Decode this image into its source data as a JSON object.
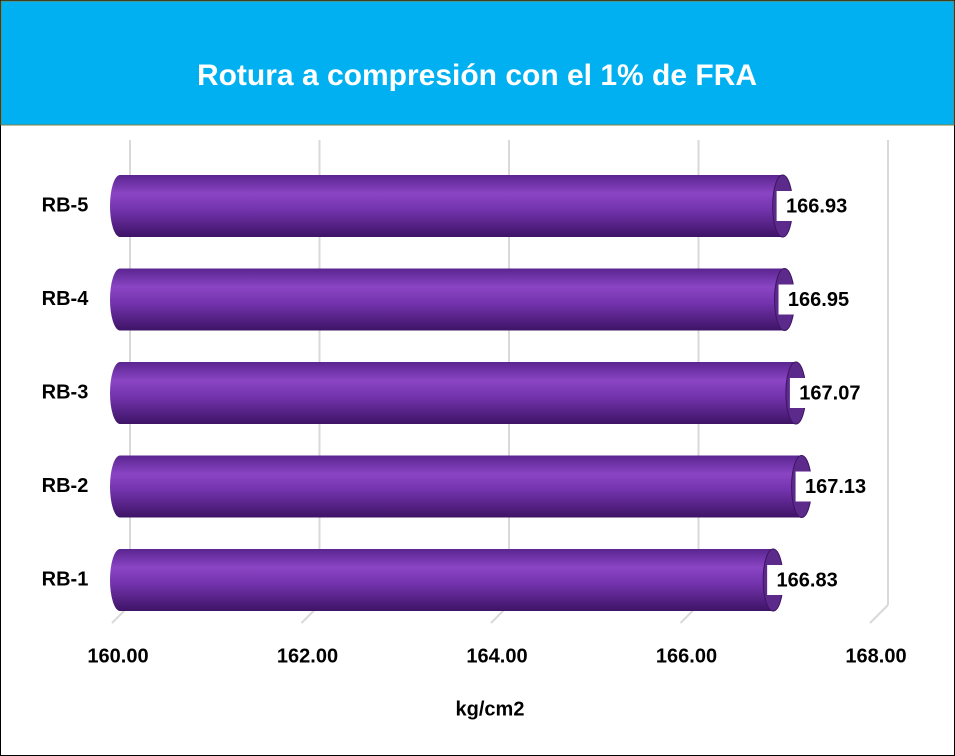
{
  "chart_data": {
    "type": "bar",
    "orientation": "horizontal",
    "title": "Rotura a compresión con el 1% de FRA",
    "x_label": "kg/cm2",
    "categories": [
      "RB-1",
      "RB-2",
      "RB-3",
      "RB-4",
      "RB-5"
    ],
    "values": [
      166.83,
      167.13,
      167.07,
      166.95,
      166.93
    ],
    "color": "#7030a0",
    "xlim": [
      160,
      168
    ],
    "xticks": [
      {
        "value": 160,
        "label": "160.00"
      },
      {
        "value": 162,
        "label": "162.00"
      },
      {
        "value": 164,
        "label": "164.00"
      },
      {
        "value": 166,
        "label": "166.00"
      },
      {
        "value": 168,
        "label": "168.00"
      }
    ],
    "grid": true
  }
}
